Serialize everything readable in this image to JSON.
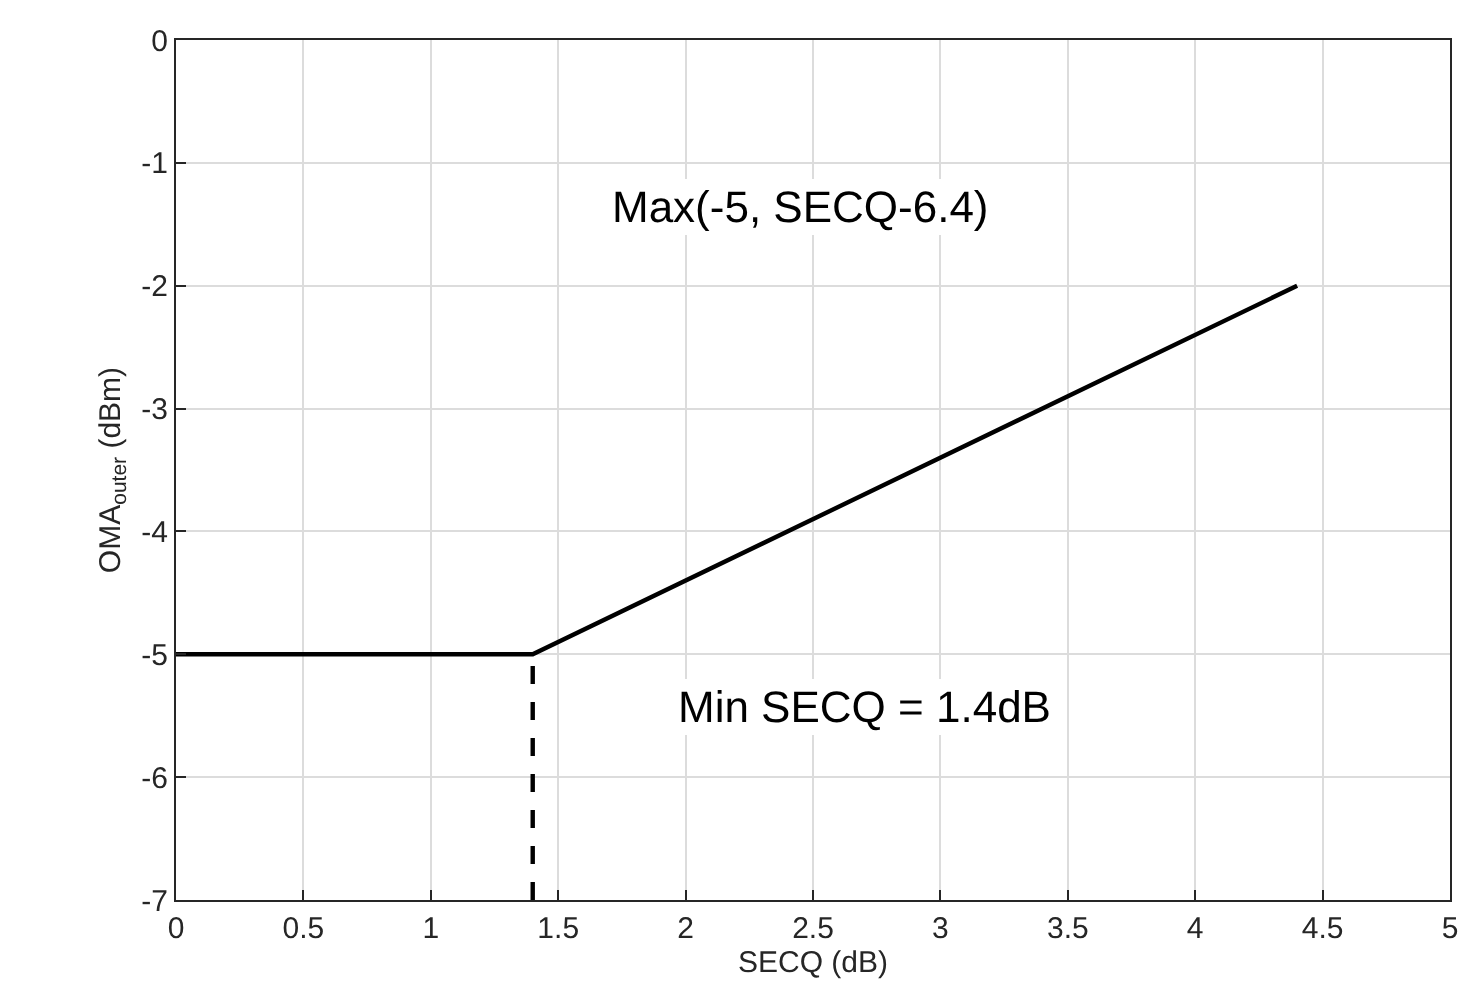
{
  "chart_data": {
    "type": "line",
    "xlabel": "SECQ (dB)",
    "ylabel": "OMA$_{outer}$ (dBm)",
    "series": [
      {
        "color": "#000000",
        "x": [
          0,
          1.4,
          4.4
        ],
        "values": [
          -5,
          -5,
          -2
        ],
        "line_style": "solid"
      },
      {
        "color": "#000000",
        "x": [
          1.4,
          1.4
        ],
        "values": [
          -7,
          -5
        ],
        "line_style": "dashed"
      }
    ],
    "xlim": [
      0,
      5
    ],
    "xticks": [
      0,
      0.5,
      1,
      1.5,
      2,
      2.5,
      3,
      3.5,
      4,
      4.5,
      5
    ],
    "ylim": [
      -7,
      0
    ],
    "yticks": [
      -7,
      -6,
      -5,
      -4,
      -3,
      -2,
      -1,
      0
    ],
    "grid": true,
    "marker": "none",
    "annotations": [
      "Max(-5, SECQ-6.4)",
      "Min SECQ = 1.4dB"
    ]
  }
}
